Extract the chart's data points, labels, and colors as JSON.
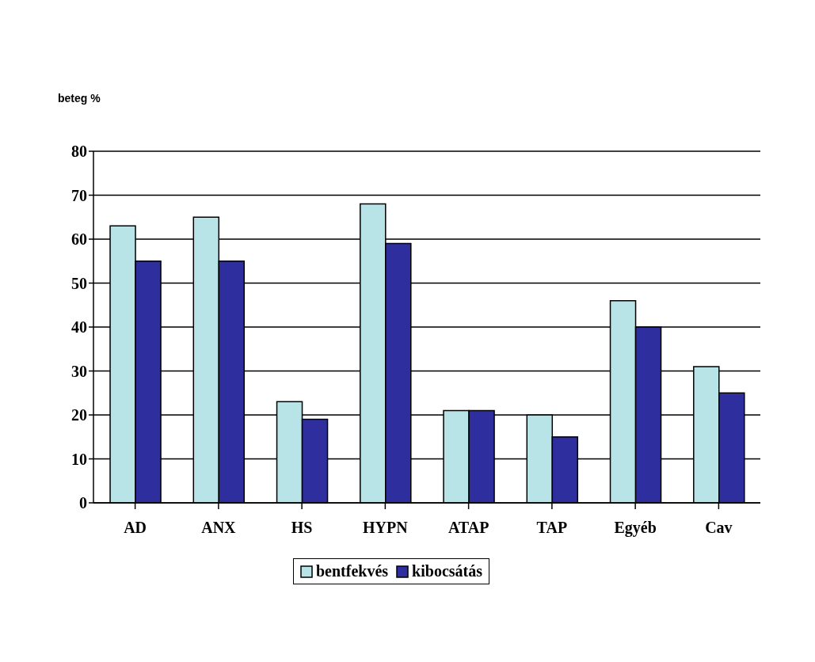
{
  "chart_data": {
    "type": "bar",
    "ylabel": "beteg %",
    "categories": [
      "AD",
      "ANX",
      "HS",
      "HYPN",
      "ATAP",
      "TAP",
      "Egyéb",
      "Cav"
    ],
    "series": [
      {
        "name": "bentfekvés",
        "color": "#b8e4e8",
        "values": [
          63,
          65,
          23,
          68,
          21,
          20,
          46,
          31
        ]
      },
      {
        "name": "kibocsátás",
        "color": "#2e2e9e",
        "values": [
          55,
          55,
          19,
          59,
          21,
          15,
          40,
          25
        ]
      }
    ],
    "ylim": [
      0,
      80
    ],
    "yticks": [
      0,
      10,
      20,
      30,
      40,
      50,
      60,
      70,
      80
    ],
    "grid": "y",
    "legend": "bottom"
  }
}
